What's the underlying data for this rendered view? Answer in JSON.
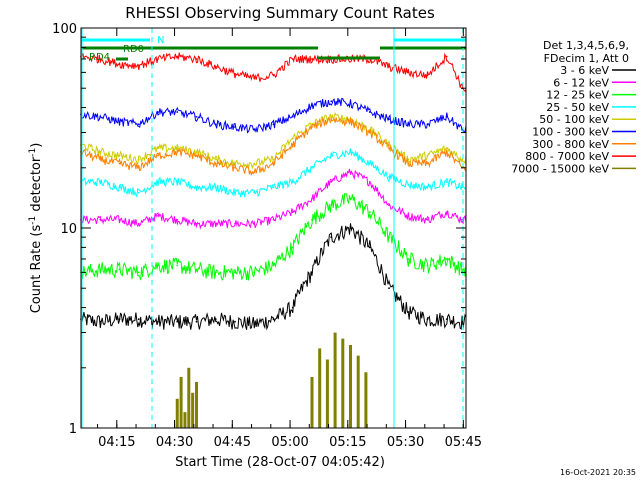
{
  "chart_data": {
    "type": "line",
    "title": "RHESSI Observing Summary Count Rates",
    "xlabel": "Start Time (28-Oct-07 04:05:42)",
    "ylabel": "Count Rate (s",
    "ylabel_sup": "-1",
    "ylabel_end": " detector",
    "ylabel_sup2": "-1",
    "ylabel_close": ")",
    "y_scale": "log",
    "ylim": [
      1,
      100
    ],
    "y_ticks": [
      {
        "value": 1,
        "label": "1"
      },
      {
        "value": 10,
        "label": "10"
      },
      {
        "value": 100,
        "label": "100"
      }
    ],
    "xlim_minutes": [
      0,
      100
    ],
    "x_ticks": [
      {
        "minute": 9.3,
        "label": "04:15"
      },
      {
        "minute": 24.3,
        "label": "04:30"
      },
      {
        "minute": 39.3,
        "label": "04:45"
      },
      {
        "minute": 54.3,
        "label": "05:00"
      },
      {
        "minute": 69.3,
        "label": "05:15"
      },
      {
        "minute": 84.3,
        "label": "05:30"
      },
      {
        "minute": 99.3,
        "label": "05:45"
      }
    ],
    "legend_header": [
      "Det 1,3,4,5,6,9,",
      "FDecim 1, Att 0"
    ],
    "legend_position": "right",
    "series": [
      {
        "name": "3 - 6 keV",
        "color": "#000000",
        "x": [
          0,
          5,
          10,
          15,
          20,
          25,
          30,
          35,
          40,
          45,
          50,
          55,
          60,
          65,
          70,
          75,
          80,
          85,
          90,
          95,
          99
        ],
        "y": [
          3.5,
          3.4,
          3.5,
          3.5,
          3.4,
          3.4,
          3.4,
          3.5,
          3.4,
          3.3,
          3.5,
          4.0,
          6.0,
          9.0,
          10.0,
          8.0,
          5.0,
          3.8,
          3.5,
          3.5,
          3.4
        ]
      },
      {
        "name": "6 - 12 keV",
        "color": "#ff00ff",
        "x": [
          0,
          5,
          10,
          15,
          20,
          25,
          30,
          35,
          40,
          45,
          50,
          55,
          60,
          65,
          70,
          75,
          80,
          85,
          90,
          95,
          99
        ],
        "y": [
          11,
          11,
          11,
          10.5,
          11.5,
          11,
          10.5,
          10.5,
          10.5,
          10.5,
          11,
          12,
          14,
          17,
          19,
          17,
          13,
          11.5,
          11,
          12,
          11
        ]
      },
      {
        "name": "12 - 25 keV",
        "color": "#00ff00",
        "x": [
          0,
          5,
          10,
          15,
          20,
          25,
          30,
          35,
          40,
          45,
          50,
          55,
          60,
          65,
          70,
          75,
          80,
          85,
          90,
          95,
          99
        ],
        "y": [
          6.0,
          6.2,
          6.2,
          6.0,
          6.5,
          6.5,
          6.2,
          6.0,
          6.0,
          6.0,
          6.5,
          8.0,
          11,
          13,
          14,
          12,
          9,
          7,
          6.5,
          7,
          6.2
        ]
      },
      {
        "name": "25 - 50 keV",
        "color": "#00ffff",
        "x": [
          0,
          5,
          10,
          15,
          20,
          25,
          30,
          35,
          40,
          45,
          50,
          55,
          60,
          65,
          70,
          75,
          80,
          85,
          90,
          95,
          99
        ],
        "y": [
          17,
          17,
          16,
          15,
          17,
          17,
          16,
          16,
          15,
          15,
          16,
          17,
          20,
          23,
          24,
          21,
          18,
          16.5,
          16,
          17,
          16
        ]
      },
      {
        "name": "50 - 100 keV",
        "color": "#cccc00",
        "x": [
          0,
          5,
          10,
          15,
          20,
          25,
          30,
          35,
          40,
          45,
          50,
          55,
          60,
          65,
          70,
          75,
          80,
          85,
          90,
          95,
          99
        ],
        "y": [
          26,
          24,
          23,
          22,
          25,
          25,
          24,
          22,
          21,
          21,
          22,
          28,
          33,
          36,
          35,
          31,
          26,
          22,
          23,
          25,
          22
        ]
      },
      {
        "name": "100 - 300 keV",
        "color": "#0000ff",
        "x": [
          0,
          5,
          10,
          15,
          20,
          25,
          30,
          35,
          40,
          45,
          50,
          55,
          60,
          65,
          70,
          75,
          80,
          85,
          90,
          95,
          99
        ],
        "y": [
          37,
          36,
          34,
          33,
          38,
          38,
          36,
          33,
          32,
          31,
          33,
          36,
          41,
          43,
          42,
          38,
          35,
          33,
          33,
          36,
          31
        ]
      },
      {
        "name": "300 - 800 keV",
        "color": "#ff8000",
        "x": [
          0,
          5,
          10,
          15,
          20,
          25,
          30,
          35,
          40,
          45,
          50,
          55,
          60,
          65,
          70,
          75,
          80,
          85,
          90,
          95,
          99
        ],
        "y": [
          24,
          22,
          21,
          20,
          23,
          24,
          23,
          21,
          20,
          19,
          21,
          26,
          32,
          35,
          34,
          30,
          25,
          21,
          21,
          24,
          20
        ]
      },
      {
        "name": "800 - 7000 keV",
        "color": "#ff0000",
        "x": [
          0,
          5,
          10,
          15,
          20,
          25,
          30,
          35,
          40,
          45,
          50,
          55,
          60,
          65,
          70,
          75,
          80,
          85,
          90,
          95,
          99
        ],
        "y": [
          72,
          70,
          66,
          65,
          70,
          72,
          70,
          64,
          59,
          56,
          58,
          70,
          70,
          70,
          70,
          70,
          64,
          60,
          58,
          72,
          50
        ]
      },
      {
        "name": "7000 - 15000 keV",
        "color": "#808000",
        "x": [
          25,
          26,
          27,
          28,
          29,
          30,
          60,
          62,
          64,
          66,
          68,
          70,
          72,
          74
        ],
        "y": [
          1.4,
          1.8,
          1.2,
          2.0,
          1.5,
          1.7,
          1.8,
          2.5,
          2.2,
          3.0,
          2.8,
          2.6,
          2.3,
          1.9
        ]
      }
    ],
    "flags": [
      {
        "label": "N",
        "color": "#00ffff"
      },
      {
        "label": "RD0",
        "color": "#008000"
      },
      {
        "label": "RD4",
        "color": "#008000"
      }
    ],
    "footer_date": "16-Oct-2021 20:35"
  }
}
